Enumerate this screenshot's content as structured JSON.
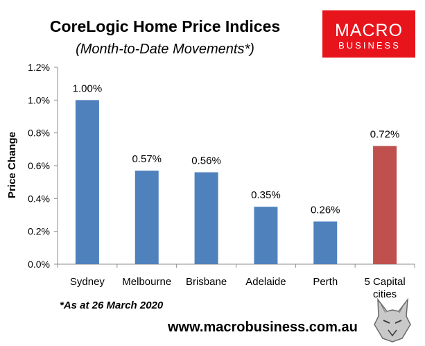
{
  "chart_data": {
    "type": "bar",
    "title": "CoreLogic Home Price Indices",
    "subtitle": "(Month-to-Date Movements*)",
    "ylabel": "Price Change",
    "xlabel": "",
    "categories": [
      "Sydney",
      "Melbourne",
      "Brisbane",
      "Adelaide",
      "Perth",
      "5 Capital cities"
    ],
    "category_lines": [
      [
        "Sydney"
      ],
      [
        "Melbourne"
      ],
      [
        "Brisbane"
      ],
      [
        "Adelaide"
      ],
      [
        "Perth"
      ],
      [
        "5 Capital",
        "cities"
      ]
    ],
    "values": [
      1.0,
      0.57,
      0.56,
      0.35,
      0.26,
      0.72
    ],
    "data_labels": [
      "1.00%",
      "0.57%",
      "0.56%",
      "0.35%",
      "0.26%",
      "0.72%"
    ],
    "ylim": [
      0,
      1.2
    ],
    "yticks": [
      0,
      0.2,
      0.4,
      0.6,
      0.8,
      1.0,
      1.2
    ],
    "ytick_labels": [
      "0.0%",
      "0.2%",
      "0.4%",
      "0.6%",
      "0.8%",
      "1.0%",
      "1.2%"
    ],
    "colors": [
      "#4f81bd",
      "#4f81bd",
      "#4f81bd",
      "#4f81bd",
      "#4f81bd",
      "#c0504d"
    ],
    "grid": false,
    "footnote": "*As at 26 March 2020"
  },
  "branding": {
    "logo_line1": "MACRO",
    "logo_line2": "BUSINESS",
    "logo_color": "#e8141c",
    "url": "www.macrobusiness.com.au",
    "mascot_icon": "wolf-head-icon"
  }
}
